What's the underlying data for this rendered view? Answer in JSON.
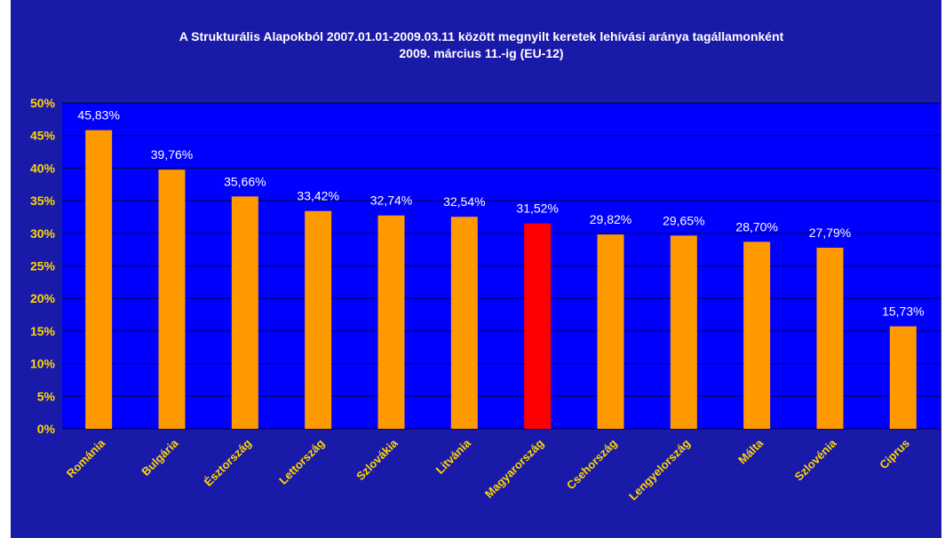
{
  "chart_data": {
    "type": "bar",
    "title": "A Strukturális Alapokból 2007.01.01-2009.03.11 között megnyilt keretek lehívási aránya tagállamonként",
    "subtitle": "2009. március 11.-ig (EU-12)",
    "xlabel": "",
    "ylabel": "",
    "ylim": [
      0,
      50
    ],
    "y_ticks": [
      "0%",
      "5%",
      "10%",
      "15%",
      "20%",
      "25%",
      "30%",
      "35%",
      "40%",
      "45%",
      "50%"
    ],
    "categories": [
      "Románia",
      "Bulgária",
      "Észtország",
      "Lettország",
      "Szlovákia",
      "Litvánia",
      "Magyarország",
      "Csehország",
      "Lengyelország",
      "Málta",
      "Szlovénia",
      "Ciprus"
    ],
    "values": [
      45.83,
      39.76,
      35.66,
      33.42,
      32.74,
      32.54,
      31.52,
      29.82,
      29.65,
      28.7,
      27.79,
      15.73
    ],
    "value_labels": [
      "45,83%",
      "39,76%",
      "35,66%",
      "33,42%",
      "32,74%",
      "32,54%",
      "31,52%",
      "29,82%",
      "29,65%",
      "28,70%",
      "27,79%",
      "15,73%"
    ],
    "highlight_category": "Magyarország",
    "grid": true,
    "legend": "none",
    "colors": {
      "background": "#1a1aa8",
      "plot_area": "#0000ff",
      "bar": "#ff9900",
      "highlight_bar": "#ff0000",
      "gridline": "#000066",
      "tick_label": "#ffd700",
      "value_label": "#ffffff",
      "title": "#ffffff"
    }
  }
}
